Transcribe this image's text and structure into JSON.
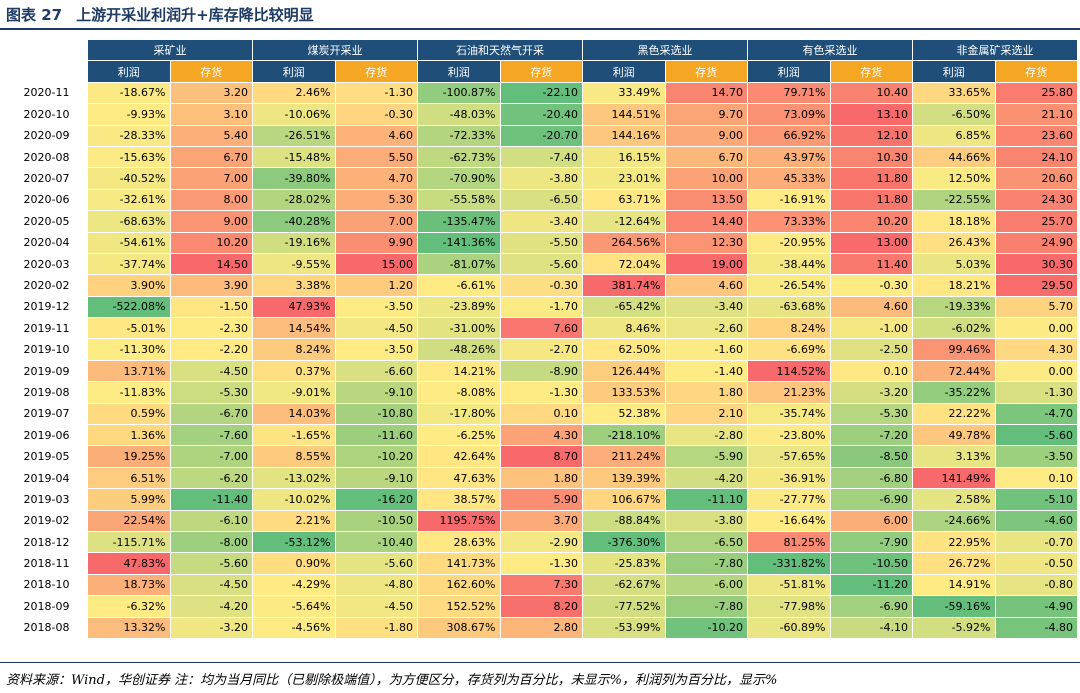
{
  "figure": {
    "number": "图表 27",
    "title": "上游开采业利润升+库存降比较明显"
  },
  "table": {
    "groups": [
      "采矿业",
      "煤炭开采业",
      "石油和天然气开采",
      "黑色采选业",
      "有色采选业",
      "非金属矿采选业"
    ],
    "sub_labels": {
      "profit": "利润",
      "inventory": "存货"
    },
    "rows": [
      {
        "month": "2020-11",
        "values": [
          "-18.67%",
          "3.20",
          "2.46%",
          "-1.30",
          "-100.87%",
          "-22.10",
          "33.49%",
          "14.70",
          "79.71%",
          "10.40",
          "33.65%",
          "25.80"
        ]
      },
      {
        "month": "2020-10",
        "values": [
          "-9.93%",
          "3.10",
          "-10.06%",
          "-0.30",
          "-48.03%",
          "-20.40",
          "144.51%",
          "9.70",
          "73.09%",
          "13.10",
          "-6.50%",
          "21.10"
        ]
      },
      {
        "month": "2020-09",
        "values": [
          "-28.33%",
          "5.40",
          "-26.51%",
          "4.60",
          "-72.33%",
          "-20.70",
          "144.16%",
          "9.00",
          "66.92%",
          "12.10",
          "6.85%",
          "23.60"
        ]
      },
      {
        "month": "2020-08",
        "values": [
          "-15.63%",
          "6.70",
          "-15.48%",
          "5.50",
          "-62.73%",
          "-7.40",
          "16.15%",
          "6.70",
          "43.97%",
          "10.30",
          "44.66%",
          "24.10"
        ]
      },
      {
        "month": "2020-07",
        "values": [
          "-40.52%",
          "7.00",
          "-39.80%",
          "4.70",
          "-70.90%",
          "-3.80",
          "23.01%",
          "10.00",
          "45.33%",
          "11.80",
          "12.50%",
          "20.60"
        ]
      },
      {
        "month": "2020-06",
        "values": [
          "-32.61%",
          "8.00",
          "-28.02%",
          "5.30",
          "-55.58%",
          "-6.50",
          "63.71%",
          "13.50",
          "-16.91%",
          "11.80",
          "-22.55%",
          "24.30"
        ]
      },
      {
        "month": "2020-05",
        "values": [
          "-68.63%",
          "9.00",
          "-40.28%",
          "7.00",
          "-135.47%",
          "-3.40",
          "-12.64%",
          "14.40",
          "73.33%",
          "10.20",
          "18.18%",
          "25.70"
        ]
      },
      {
        "month": "2020-04",
        "values": [
          "-54.61%",
          "10.20",
          "-19.16%",
          "9.90",
          "-141.36%",
          "-5.50",
          "264.56%",
          "12.30",
          "-20.95%",
          "13.00",
          "26.43%",
          "24.90"
        ]
      },
      {
        "month": "2020-03",
        "values": [
          "-37.74%",
          "14.50",
          "-9.55%",
          "15.00",
          "-81.07%",
          "-5.60",
          "72.04%",
          "19.00",
          "-38.44%",
          "11.40",
          "5.03%",
          "30.30"
        ]
      },
      {
        "month": "2020-02",
        "values": [
          "3.90%",
          "3.90",
          "3.38%",
          "1.20",
          "-6.61%",
          "-0.30",
          "381.74%",
          "4.60",
          "-26.54%",
          "-0.30",
          "18.21%",
          "29.50"
        ]
      },
      {
        "month": "2019-12",
        "values": [
          "-522.08%",
          "-1.50",
          "47.93%",
          "-3.50",
          "-23.89%",
          "-1.70",
          "-65.42%",
          "-3.40",
          "-63.68%",
          "4.60",
          "-19.33%",
          "5.70"
        ]
      },
      {
        "month": "2019-11",
        "values": [
          "-5.01%",
          "-2.30",
          "14.54%",
          "-4.50",
          "-31.00%",
          "7.60",
          "8.46%",
          "-2.60",
          "8.24%",
          "-1.00",
          "-6.02%",
          "0.00"
        ]
      },
      {
        "month": "2019-10",
        "values": [
          "-11.30%",
          "-2.20",
          "8.24%",
          "-3.50",
          "-48.26%",
          "-2.70",
          "62.50%",
          "-1.60",
          "-6.69%",
          "-2.50",
          "99.46%",
          "4.30"
        ]
      },
      {
        "month": "2019-09",
        "values": [
          "13.71%",
          "-4.50",
          "0.37%",
          "-6.60",
          "14.21%",
          "-8.90",
          "126.44%",
          "-1.40",
          "114.52%",
          "0.10",
          "72.44%",
          "0.00"
        ]
      },
      {
        "month": "2019-08",
        "values": [
          "-11.83%",
          "-5.30",
          "-9.01%",
          "-9.10",
          "-8.08%",
          "-1.30",
          "133.53%",
          "1.80",
          "21.23%",
          "-3.20",
          "-35.22%",
          "-1.30"
        ]
      },
      {
        "month": "2019-07",
        "values": [
          "0.59%",
          "-6.70",
          "14.03%",
          "-10.80",
          "-17.80%",
          "0.10",
          "52.38%",
          "2.10",
          "-35.74%",
          "-5.30",
          "22.22%",
          "-4.70"
        ]
      },
      {
        "month": "2019-06",
        "values": [
          "1.36%",
          "-7.60",
          "-1.65%",
          "-11.60",
          "-6.25%",
          "4.30",
          "-218.10%",
          "-2.80",
          "-23.80%",
          "-7.20",
          "49.78%",
          "-5.60"
        ]
      },
      {
        "month": "2019-05",
        "values": [
          "19.25%",
          "-7.00",
          "8.55%",
          "-10.20",
          "42.64%",
          "8.70",
          "211.24%",
          "-5.90",
          "-57.65%",
          "-8.50",
          "3.13%",
          "-3.50"
        ]
      },
      {
        "month": "2019-04",
        "values": [
          "6.51%",
          "-6.20",
          "-13.02%",
          "-9.10",
          "47.63%",
          "1.80",
          "139.39%",
          "-4.20",
          "-36.91%",
          "-6.80",
          "141.49%",
          "0.10"
        ]
      },
      {
        "month": "2019-03",
        "values": [
          "5.99%",
          "-11.40",
          "-10.02%",
          "-16.20",
          "38.57%",
          "5.90",
          "106.67%",
          "-11.10",
          "-27.77%",
          "-6.90",
          "2.58%",
          "-5.10"
        ]
      },
      {
        "month": "2019-02",
        "values": [
          "22.54%",
          "-6.10",
          "2.21%",
          "-10.50",
          "1195.75%",
          "3.70",
          "-88.84%",
          "-3.80",
          "-16.64%",
          "6.00",
          "-24.66%",
          "-4.60"
        ]
      },
      {
        "month": "2018-12",
        "values": [
          "-115.71%",
          "-8.00",
          "-53.12%",
          "-10.40",
          "28.63%",
          "-2.90",
          "-376.30%",
          "-6.50",
          "81.25%",
          "-7.90",
          "22.95%",
          "-0.70"
        ]
      },
      {
        "month": "2018-11",
        "values": [
          "47.83%",
          "-5.60",
          "0.90%",
          "-5.60",
          "141.73%",
          "-1.30",
          "-25.83%",
          "-7.80",
          "-331.82%",
          "-10.50",
          "26.72%",
          "-0.50"
        ]
      },
      {
        "month": "2018-10",
        "values": [
          "18.73%",
          "-4.50",
          "-4.29%",
          "-4.80",
          "162.60%",
          "7.30",
          "-62.67%",
          "-6.00",
          "-51.81%",
          "-11.20",
          "14.91%",
          "-0.80"
        ]
      },
      {
        "month": "2018-09",
        "values": [
          "-6.32%",
          "-4.20",
          "-5.64%",
          "-4.50",
          "152.52%",
          "8.20",
          "-77.52%",
          "-7.80",
          "-77.98%",
          "-6.90",
          "-59.16%",
          "-4.90"
        ]
      },
      {
        "month": "2018-08",
        "values": [
          "13.32%",
          "-3.20",
          "-4.56%",
          "-1.80",
          "308.67%",
          "2.80",
          "-53.99%",
          "-10.20",
          "-60.89%",
          "-4.10",
          "-5.92%",
          "-4.80"
        ]
      }
    ]
  },
  "colors": {
    "header_blue": "#1f4e79",
    "header_orange": "#f5a623",
    "scale_green": "#63be7b",
    "scale_yellow": "#ffeb84",
    "scale_red": "#f8696b"
  },
  "footnote": "资料来源：Wind，华创证券   注：均为当月同比（已剔除极端值），为方便区分，存货列为百分比，未显示%，利润列为百分比，显示%"
}
